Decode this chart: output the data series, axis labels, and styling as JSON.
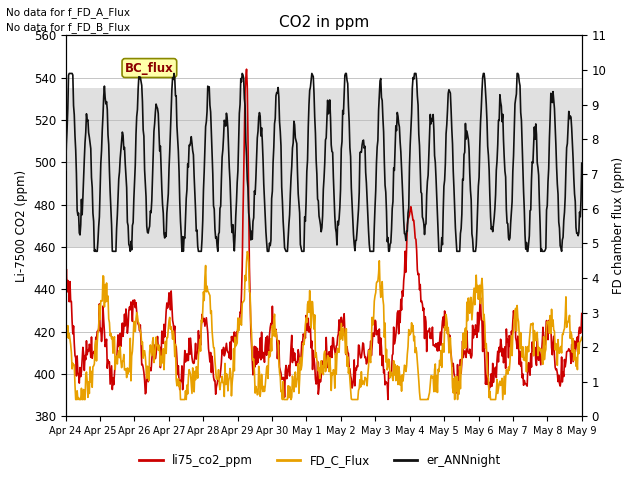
{
  "title": "CO2 in ppm",
  "ylabel_left": "Li-7500 CO2 (ppm)",
  "ylabel_right": "FD chamber flux (ppm)",
  "ylim_left": [
    380,
    560
  ],
  "ylim_right": [
    0.0,
    11.0
  ],
  "yticks_left": [
    380,
    400,
    420,
    440,
    460,
    480,
    500,
    520,
    540,
    560
  ],
  "yticks_right": [
    0.0,
    1.0,
    2.0,
    3.0,
    4.0,
    5.0,
    6.0,
    7.0,
    8.0,
    9.0,
    10.0,
    11.0
  ],
  "shaded_region": [
    460,
    535
  ],
  "text_lines": [
    "No data for f_FD_A_Flux",
    "No data for f_FD_B_Flux"
  ],
  "bc_flux_label": "BC_flux",
  "legend_items": [
    {
      "label": "li75_co2_ppm",
      "color": "#cc0000",
      "lw": 1.2
    },
    {
      "label": "FD_C_Flux",
      "color": "#e8a000",
      "lw": 1.2
    },
    {
      "label": "er_ANNnight",
      "color": "#111111",
      "lw": 1.2
    }
  ],
  "grid_color": "#bbbbbb",
  "background_color": "#ffffff",
  "shaded_color": "#e0e0e0",
  "num_points": 720,
  "figsize": [
    6.4,
    4.8
  ],
  "dpi": 100
}
